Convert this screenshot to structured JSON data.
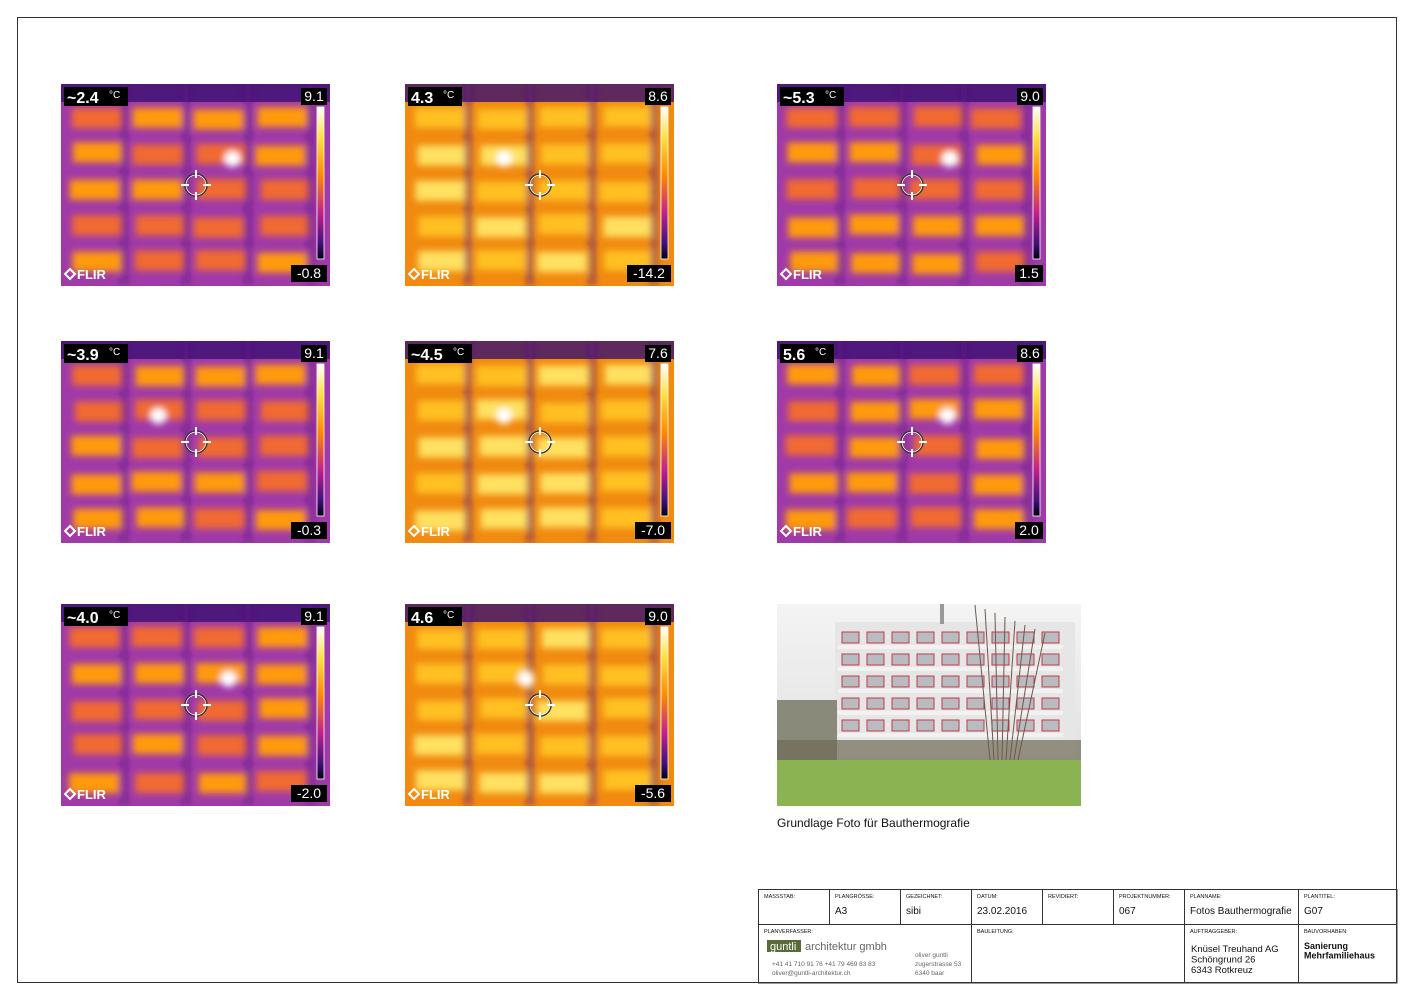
{
  "thermal_images": [
    {
      "spot": "~2.4",
      "unit": "°C",
      "max": "9.1",
      "min": "-0.8",
      "logo": "FLIR"
    },
    {
      "spot": "4.3",
      "unit": "°C",
      "max": "8.6",
      "min": "-14.2",
      "logo": "FLIR"
    },
    {
      "spot": "~5.3",
      "unit": "°C",
      "max": "9.0",
      "min": "1.5",
      "logo": "FLIR"
    },
    {
      "spot": "~3.9",
      "unit": "°C",
      "max": "9.1",
      "min": "-0.3",
      "logo": "FLIR"
    },
    {
      "spot": "~4.5",
      "unit": "°C",
      "max": "7.6",
      "min": "-7.0",
      "logo": "FLIR"
    },
    {
      "spot": "5.6",
      "unit": "°C",
      "max": "8.6",
      "min": "2.0",
      "logo": "FLIR"
    },
    {
      "spot": "~4.0",
      "unit": "°C",
      "max": "9.1",
      "min": "-2.0",
      "logo": "FLIR"
    },
    {
      "spot": "4.6",
      "unit": "°C",
      "max": "9.0",
      "min": "-5.6",
      "logo": "FLIR"
    }
  ],
  "photo": {
    "caption": "Grundlage Foto für Bauthermografie"
  },
  "title_block": {
    "header": [
      {
        "label": "MASSSTAB:"
      },
      {
        "label": "PLANGRÖSSE:",
        "value": "A3"
      },
      {
        "label": "GEZEICHNET:",
        "value": "sibi"
      },
      {
        "label": "DATUM:",
        "value": "23.02.2016"
      },
      {
        "label": "REVIDIERT:"
      },
      {
        "label": "PROJEKTNUMMER:",
        "value": "067"
      },
      {
        "label": "PLANNAME:",
        "value": "Fotos Bauthermografie"
      },
      {
        "label": "PLANTITEL:",
        "value": "G07"
      }
    ],
    "planverfasser": {
      "label": "PLANVERFASSER:",
      "logo": "guntli",
      "company": "architektur gmbh",
      "phone": "+41 41 710 91 76   +41 79 469 83 83",
      "email": "oliver@guntli-architektur.ch",
      "address": [
        "oliver guntli",
        "zugerstrasse 53",
        "6340 baar"
      ]
    },
    "bauleitung": {
      "label": "BAULEITUNG:"
    },
    "auftraggeber": {
      "label": "AUFTRAGGEBER:",
      "lines": [
        "Knüsel Treuhand AG",
        "Schöngrund 26",
        "6343 Rotkreuz"
      ]
    },
    "bauvorhaben": {
      "label": "BAUVORHABEN:",
      "lines": [
        "Sanierung",
        "Mehrfamiliehaus"
      ]
    }
  }
}
